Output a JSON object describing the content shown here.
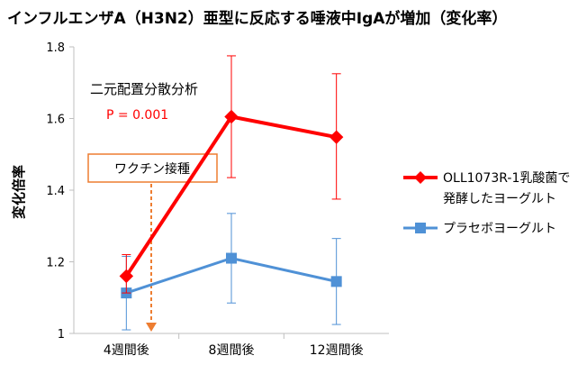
{
  "chart_data": {
    "type": "line",
    "title": "インフルエンザA（H3N2）亜型に反応する唾液中IgAが増加（変化率）",
    "ylabel": "変化倍率",
    "xlabel": "",
    "categories": [
      "4週間後",
      "8週間後",
      "12週間後"
    ],
    "ylim": [
      1,
      1.8
    ],
    "yticks": [
      "1",
      "1.2",
      "1.4",
      "1.6",
      "1.8"
    ],
    "grid": false,
    "legend_position": "right",
    "series": [
      {
        "name_lines": [
          "OLL1073R-1乳酸菌で",
          "発酵したヨーグルト"
        ],
        "color": "#ff0000",
        "marker": "diamond",
        "values": [
          1.16,
          1.605,
          1.548
        ],
        "err_low": [
          1.113,
          1.435,
          1.375
        ],
        "err_high": [
          1.22,
          1.775,
          1.725
        ]
      },
      {
        "name_lines": [
          "プラセボヨーグルト"
        ],
        "color": "#4f91d6",
        "marker": "square",
        "values": [
          1.113,
          1.21,
          1.145
        ],
        "err_low": [
          1.01,
          1.085,
          1.025
        ],
        "err_high": [
          1.215,
          1.335,
          1.265
        ]
      }
    ],
    "annotations": {
      "stat_test": "二元配置分散分析",
      "p_value": "P = 0.001",
      "vaccination": "ワクチン接種"
    },
    "colors": {
      "accent_red": "#ff0000",
      "accent_blue": "#4f91d6",
      "annotation_orange": "#ed7d31",
      "axis": "#bfbfbf"
    }
  }
}
